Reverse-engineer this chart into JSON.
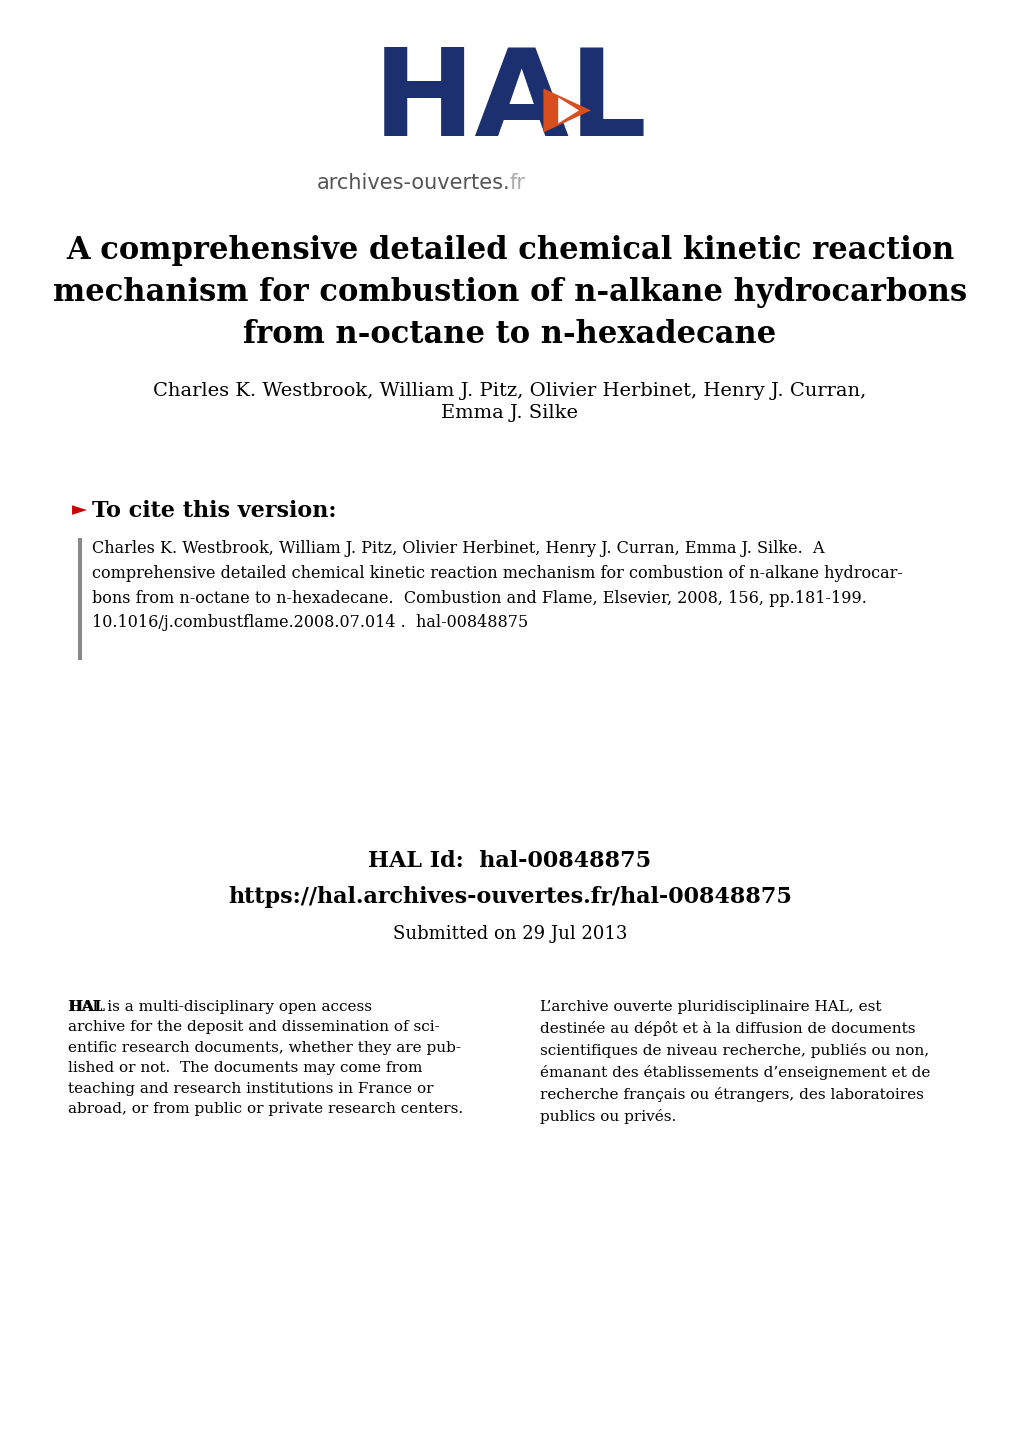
{
  "bg_color": "#ffffff",
  "hal_logo_color": "#1c2f6e",
  "hal_arrow_orange": "#d94e1f",
  "hal_arrow_white": "#ffffff",
  "hal_text_dark": "#555555",
  "hal_text_light": "#aaaaaa",
  "title_bold": "A comprehensive detailed chemical kinetic reaction\nmechanism for combustion of n-alkane hydrocarbons\nfrom n-octane to n-hexadecane",
  "authors_line1": "Charles K. Westbrook, William J. Pitz, Olivier Herbinet, Henry J. Curran,",
  "authors_line2": "Emma J. Silke",
  "cite_header": "To cite this version:",
  "cite_text": "Charles K. Westbrook, William J. Pitz, Olivier Herbinet, Henry J. Curran, Emma J. Silke.  A\ncomprehensive detailed chemical kinetic reaction mechanism for combustion of n-alkane hydrocar-\nbons from n-octane to n-hexadecane.  Combustion and Flame, Elsevier, 2008, 156, pp.181-199.\n10.1016/j.combustflame.2008.07.014 .  hal-00848875",
  "hal_id_label": "HAL Id:",
  "hal_id_value": "hal-00848875",
  "hal_id_url": "https://hal.archives-ouvertes.fr/hal-00848875",
  "submitted": "Submitted on 29 Jul 2013",
  "col1_text_plain": " is a multi-disciplinary open access\narchive for the deposit and dissemination of sci-\nentific research documents, whether they are pub-\nlished or not.  The documents may come from\nteaching and research institutions in France or\nabroad, or from public or private research centers.",
  "col2_text_plain": " is a multi-disciplinary open access\narchive for the deposit and dissemination of sci-\nentific research documents, whether they are pub-\nlished or not.  The documents may come from\nteaching and research institutions in France or\nabroad, or from public or private research centers.",
  "col1_hal_bold": "HAL",
  "col2_hal_bold": "HAL",
  "col1_full": "HAL is a multi-disciplinary open access\narchive for the deposit and dissemination of sci-\nentific research documents, whether they are pub-\nlished or not.  The documents may come from\nteaching and research institutions in France or\nabroad, or from public or private research centers.",
  "col2_full": "L’archive ouverte pluridisciplinaire HAL, est\ndestinée au dépôt et à la diffusion de documents\nscientifiques de niveau recherche, publiés ou non,\némanant des établissements d’enseignement et de\nrecherche français ou étrangers, des laboratoires\npublics ou privés.",
  "arrow_red_color": "#cc0000",
  "left_bar_color": "#888888"
}
